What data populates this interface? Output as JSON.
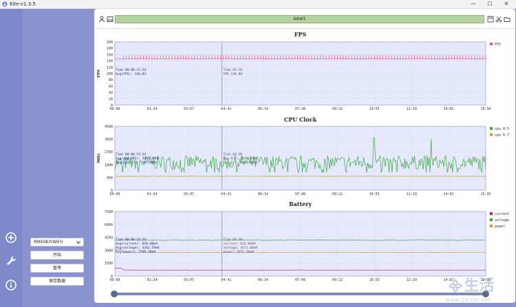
{
  "window": {
    "title": "Kite-v1.3.5",
    "minimize": "—",
    "maximize": "☐",
    "close": "✕"
  },
  "toolbar": {
    "label": "label1"
  },
  "device": {
    "selected": "RMX083(WIFI)"
  },
  "buttons": {
    "start": "开始",
    "pause": "暂停",
    "save": "保存数据"
  },
  "watermark": {
    "text": "᯽生活",
    "url": "www.3elife.net"
  },
  "chart_data": [
    {
      "type": "line",
      "title": "FPS",
      "ylabel": "FPS",
      "ylim": [
        0,
        200
      ],
      "yticks": [
        "200",
        "180",
        "160",
        "140",
        "120",
        "100",
        "80",
        "60",
        "40",
        "20",
        "0"
      ],
      "xticks": [
        "00:00",
        "01:34",
        "03:07",
        "04:41",
        "06:14",
        "07:48",
        "09:22",
        "10:55",
        "12:29",
        "14:02",
        "15:36"
      ],
      "series": [
        {
          "name": "FPS",
          "color": "#e8546f",
          "baseline": 146,
          "spike": 158
        }
      ],
      "cursor": {
        "x": "04:30"
      },
      "annot_left": [
        "Time 00:00-15:34",
        "Avg(FPS): 146.03"
      ],
      "annot_cursor": [
        "Time 04:30",
        "FPS 146.00"
      ]
    },
    {
      "type": "line",
      "title": "CPU Clock",
      "ylabel": "MHz",
      "ylim": [
        0,
        4500
      ],
      "yticks": [
        "4500",
        "3600",
        "2700",
        "1800",
        "900",
        "0"
      ],
      "xticks": [
        "00:00",
        "01:34",
        "03:07",
        "04:41",
        "06:14",
        "07:48",
        "09:22",
        "10:55",
        "12:29",
        "14:02",
        "15:36"
      ],
      "series": [
        {
          "name": "cpu 0-5",
          "color": "#3aa83f",
          "center": 1950,
          "noise": 500,
          "peaks": [
            [
              10.9,
              3700
            ],
            [
              13.3,
              3600
            ]
          ]
        },
        {
          "name": "cpu 6-7",
          "color": "#d39a35",
          "value": 1000
        }
      ],
      "cursor": {
        "x": "04:30"
      },
      "annot_left": [
        "Time 00:00-15:34",
        "Avg(cpu 0-5): 2052.9MHz",
        "Avg(cpu 6-7): 887.0MHz"
      ],
      "annot_cursor": [
        "Time 04:30",
        "cpu 0-5: 2029.5MHz",
        "cpu 6-7: 1000.0MHz"
      ]
    },
    {
      "type": "line",
      "title": "Battery",
      "ylabel": "",
      "ylim": [
        0,
        7500
      ],
      "yticks": [
        "7500",
        "6000",
        "4500",
        "3000",
        "1500",
        "0"
      ],
      "xticks": [
        "00:00",
        "01:34",
        "03:07",
        "04:41",
        "06:14",
        "07:48",
        "09:22",
        "10:55",
        "12:29",
        "14:02",
        "15:36"
      ],
      "series": [
        {
          "name": "current",
          "color": "#b2217a",
          "value": 700
        },
        {
          "name": "voltage",
          "color": "#3aa83f",
          "value": 4180
        },
        {
          "name": "power",
          "color": "#d39a35",
          "value": 2750
        }
      ],
      "cursor": {
        "x": "04:30"
      },
      "annot_left": [
        "Time 00:00-15:34",
        "Avg(current): 650.06mA",
        "Avg(voltage): 4162.59mV",
        "Avg(power): 2709.36mW"
      ],
      "annot_cursor": [
        "Time 04:30",
        "current: 635.00mA",
        "voltage: 4171.00mV",
        "power: 2651.10mW"
      ]
    }
  ]
}
